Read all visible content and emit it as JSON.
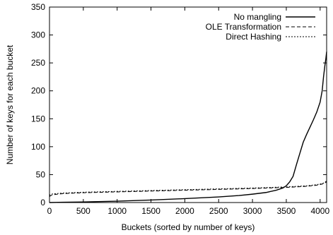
{
  "chart_data": {
    "type": "line",
    "title": "",
    "xlabel": "Buckets (sorted by number of keys)",
    "ylabel": "Number of keys for each bucket",
    "xlim": [
      0,
      4096
    ],
    "ylim": [
      0,
      350
    ],
    "xticks": [
      0,
      500,
      1000,
      1500,
      2000,
      2500,
      3000,
      3500,
      4000
    ],
    "yticks": [
      0,
      50,
      100,
      150,
      200,
      250,
      300,
      350
    ],
    "grid": false,
    "legend_position": "top-right",
    "series": [
      {
        "name": "No mangling",
        "dash": "solid",
        "x": [
          0,
          200,
          500,
          1000,
          1500,
          2000,
          2500,
          2800,
          3000,
          3200,
          3350,
          3450,
          3500,
          3550,
          3600,
          3650,
          3700,
          3750,
          3800,
          3850,
          3900,
          3950,
          4000,
          4030,
          4050,
          4070,
          4085,
          4096
        ],
        "y": [
          0,
          0.5,
          1,
          2.5,
          4.5,
          7,
          10,
          12.5,
          15,
          18,
          22,
          26,
          30,
          37,
          47,
          68,
          88,
          108,
          122,
          135,
          148,
          162,
          180,
          200,
          225,
          245,
          258,
          270
        ]
      },
      {
        "name": "OLE Transformation",
        "dash": "dashed",
        "x": [
          0,
          10,
          50,
          200,
          500,
          1000,
          1500,
          2000,
          2500,
          3000,
          3500,
          3800,
          3950,
          4030,
          4070,
          4096
        ],
        "y": [
          10,
          12,
          14,
          16,
          17.5,
          19,
          20.5,
          22,
          23.5,
          25,
          27,
          29,
          31,
          33,
          35,
          37
        ]
      },
      {
        "name": "Direct Hashing",
        "dash": "dotted",
        "x": [
          0,
          10,
          50,
          200,
          500,
          1000,
          1500,
          2000,
          2500,
          3000,
          3500,
          3800,
          3950,
          4030,
          4070,
          4096
        ],
        "y": [
          12,
          14,
          15.5,
          17,
          18.5,
          20,
          21.5,
          23,
          24.5,
          26,
          28,
          30,
          32,
          34,
          36,
          39
        ]
      }
    ]
  }
}
